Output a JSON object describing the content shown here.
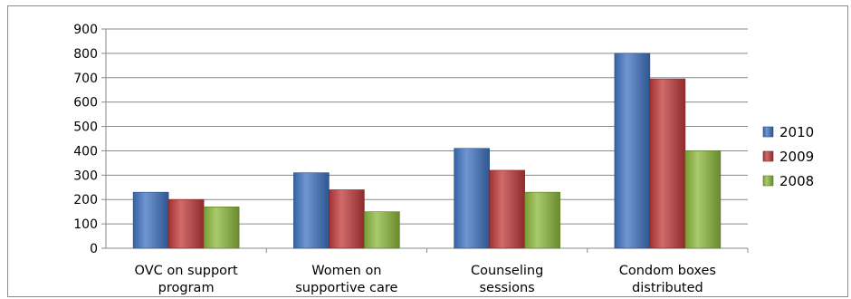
{
  "chart_data": {
    "type": "bar",
    "title": "",
    "xlabel": "",
    "ylabel": "",
    "ylim": [
      0,
      900
    ],
    "yticks": [
      0,
      100,
      200,
      300,
      400,
      500,
      600,
      700,
      800,
      900
    ],
    "grid": true,
    "legend_position": "right",
    "categories": [
      [
        "OVC on support",
        "program"
      ],
      [
        "Women on",
        "supportive care"
      ],
      [
        "Counseling",
        "sessions"
      ],
      [
        "Condom boxes",
        "distributed"
      ]
    ],
    "series": [
      {
        "name": "2010",
        "color": "#3f73c2",
        "values": [
          230,
          310,
          410,
          800
        ]
      },
      {
        "name": "2009",
        "color": "#c0393a",
        "values": [
          200,
          240,
          320,
          695
        ]
      },
      {
        "name": "2008",
        "color": "#8cb83c",
        "values": [
          170,
          150,
          230,
          400
        ]
      }
    ]
  }
}
